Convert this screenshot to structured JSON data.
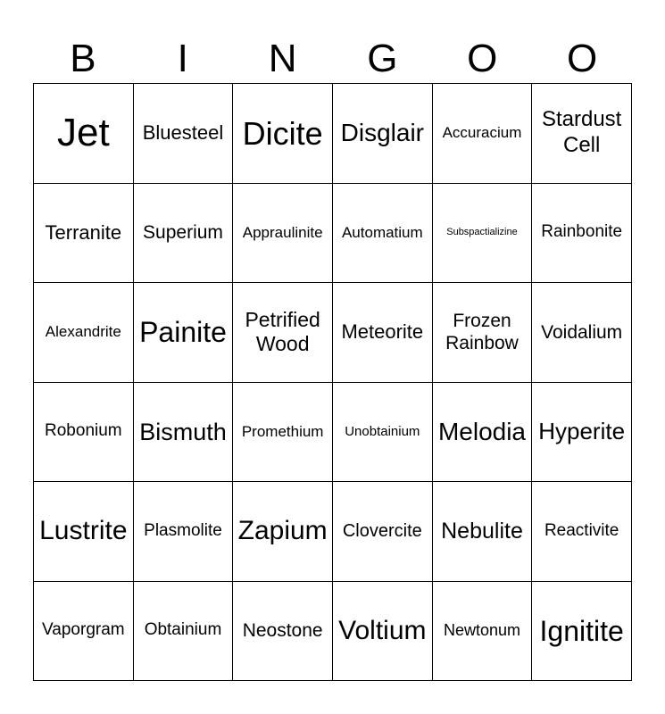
{
  "header": [
    "B",
    "I",
    "N",
    "G",
    "O",
    "O"
  ],
  "cells": [
    "Jet",
    "Bluesteel",
    "Dicite",
    "Disglair",
    "Accuracium",
    "Stardust Cell",
    "Terranite",
    "Superium",
    "Appraulinite",
    "Automatium",
    "Subspactializine",
    "Rainbonite",
    "Alexandrite",
    "Painite",
    "Petrified Wood",
    "Meteorite",
    "Frozen Rainbow",
    "Voidalium",
    "Robonium",
    "Bismuth",
    "Promethium",
    "Unobtainium",
    "Melodia",
    "Hyperite",
    "Lustrite",
    "Plasmolite",
    "Zapium",
    "Clovercite",
    "Nebulite",
    "Reactivite",
    "Vaporgram",
    "Obtainium",
    "Neostone",
    "Voltium",
    "Newtonum",
    "Ignitite"
  ]
}
